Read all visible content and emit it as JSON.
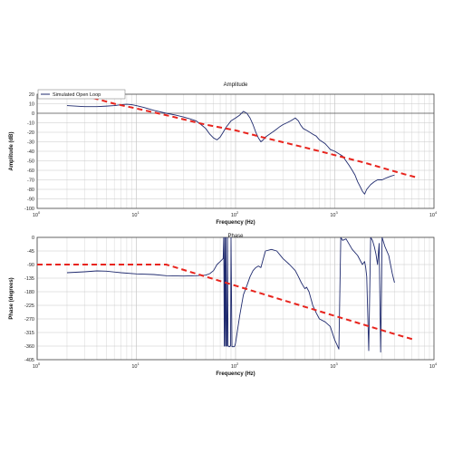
{
  "chart_data": [
    {
      "type": "line",
      "title": "Amplitude",
      "xlabel": "Frequency (Hz)",
      "ylabel": "Amplitude (dB)",
      "x_scale": "log",
      "xlim": [
        1,
        10000
      ],
      "ylim": [
        -100,
        20
      ],
      "yticks": [
        20,
        10,
        0,
        -10,
        -20,
        -30,
        -40,
        -50,
        -60,
        -70,
        -80,
        -90,
        -100
      ],
      "xticks": [
        {
          "base": "10",
          "exp": "0"
        },
        {
          "base": "10",
          "exp": "1"
        },
        {
          "base": "10",
          "exp": "2"
        },
        {
          "base": "10",
          "exp": "3"
        },
        {
          "base": "10",
          "exp": "4"
        }
      ],
      "grid": true,
      "legend": "top-left",
      "legend_entries": [
        "Simulated Open Loop"
      ],
      "series": [
        {
          "name": "Simulated Open Loop",
          "color": "#1f2a6e",
          "style": "solid",
          "x": [
            2,
            3,
            4,
            5,
            6,
            7,
            8,
            9,
            10,
            12,
            15,
            20,
            25,
            30,
            35,
            40,
            45,
            50,
            55,
            60,
            65,
            70,
            75,
            80,
            90,
            100,
            110,
            120,
            130,
            140,
            150,
            160,
            170,
            180,
            190,
            200,
            220,
            250,
            280,
            300,
            330,
            360,
            400,
            430,
            450,
            480,
            520,
            560,
            600,
            650,
            700,
            750,
            800,
            850,
            900,
            1000,
            1200,
            1400,
            1500,
            1600,
            1700,
            1800,
            1900,
            2000,
            2100,
            2300,
            2500,
            2700,
            3000,
            3300,
            3700,
            4000
          ],
          "y": [
            8,
            7,
            7,
            7.5,
            8,
            9,
            9.5,
            9,
            8,
            6,
            3,
            0,
            -2,
            -4,
            -6,
            -8,
            -12,
            -16,
            -22,
            -26,
            -28,
            -25,
            -20,
            -15,
            -8,
            -5,
            -2,
            2,
            0,
            -5,
            -12,
            -20,
            -26,
            -30,
            -28,
            -25,
            -22,
            -18,
            -14,
            -12,
            -10,
            -8,
            -5,
            -8,
            -12,
            -16,
            -18,
            -20,
            -22,
            -24,
            -28,
            -30,
            -32,
            -35,
            -38,
            -40,
            -45,
            -55,
            -60,
            -65,
            -72,
            -77,
            -82,
            -85,
            -80,
            -75,
            -72,
            -70,
            -70,
            -68,
            -66,
            -65
          ]
        },
        {
          "name": "",
          "color": "#e8241d",
          "style": "dashed",
          "x": [
            3,
            4,
            6,
            10,
            20,
            50,
            100,
            200,
            500,
            1000,
            2000,
            5000,
            7000
          ],
          "y": [
            19,
            15,
            10,
            5,
            -2,
            -12,
            -18,
            -26,
            -36,
            -44,
            -52,
            -64,
            -68
          ]
        }
      ]
    },
    {
      "type": "line",
      "title": "Phase",
      "xlabel": "Frequency (Hz)",
      "ylabel": "Phase (degrees)",
      "x_scale": "log",
      "xlim": [
        1,
        10000
      ],
      "ylim": [
        -405,
        0
      ],
      "yticks": [
        0,
        -45,
        -90,
        -135,
        -180,
        -225,
        -270,
        -315,
        -360,
        -405
      ],
      "xticks": [
        {
          "base": "10",
          "exp": "0"
        },
        {
          "base": "10",
          "exp": "1"
        },
        {
          "base": "10",
          "exp": "2"
        },
        {
          "base": "10",
          "exp": "3"
        },
        {
          "base": "10",
          "exp": "4"
        }
      ],
      "grid": true,
      "series": [
        {
          "name": "Simulated Open Loop",
          "color": "#1f2a6e",
          "style": "solid",
          "x": [
            2,
            3,
            4,
            5,
            7,
            10,
            15,
            20,
            30,
            40,
            50,
            55,
            60,
            65,
            70,
            75,
            76,
            77,
            78,
            79,
            80,
            81,
            82,
            83,
            84,
            85,
            86,
            87,
            88,
            89,
            90,
            92,
            94,
            95,
            96,
            97,
            98,
            100,
            110,
            120,
            130,
            140,
            150,
            160,
            170,
            180,
            200,
            230,
            260,
            300,
            350,
            400,
            430,
            460,
            500,
            520,
            550,
            600,
            650,
            700,
            800,
            900,
            1000,
            1050,
            1100,
            1150,
            1200,
            1300,
            1500,
            1700,
            1900,
            2000,
            2050,
            2100,
            2200,
            2300,
            2400,
            2500,
            2600,
            2700,
            2800,
            2900,
            3000,
            3200,
            3500,
            3800,
            4000
          ],
          "x_note": "",
          "y": [
            -117,
            -114,
            -111,
            -112,
            -117,
            -121,
            -123,
            -127,
            -128,
            -127,
            -125,
            -120,
            -110,
            -90,
            -80,
            -70,
            0,
            -360,
            0,
            -360,
            0,
            -360,
            -360,
            0,
            -360,
            -360,
            -362,
            -362,
            -360,
            -360,
            0,
            -362,
            -362,
            -362,
            -362,
            -362,
            -360,
            -350,
            -260,
            -190,
            -160,
            -130,
            -110,
            -100,
            -95,
            -100,
            -45,
            -40,
            -45,
            -70,
            -90,
            -110,
            -130,
            -150,
            -170,
            -165,
            -180,
            -225,
            -250,
            -270,
            -280,
            -295,
            -340,
            -355,
            -370,
            0,
            -10,
            -5,
            -40,
            -60,
            -90,
            -80,
            -100,
            -130,
            -375,
            0,
            -10,
            -30,
            -55,
            -90,
            -20,
            -380,
            0,
            -30,
            -60,
            -120,
            -150
          ]
        },
        {
          "name": "",
          "color": "#e8241d",
          "style": "dashed",
          "x": [
            1,
            2,
            5,
            10,
            20,
            50,
            100,
            200,
            500,
            1000,
            2000,
            4000,
            6500
          ],
          "y": [
            -90,
            -90,
            -90,
            -90,
            -90,
            -130,
            -160,
            -190,
            -230,
            -260,
            -290,
            -320,
            -340
          ]
        }
      ]
    }
  ]
}
